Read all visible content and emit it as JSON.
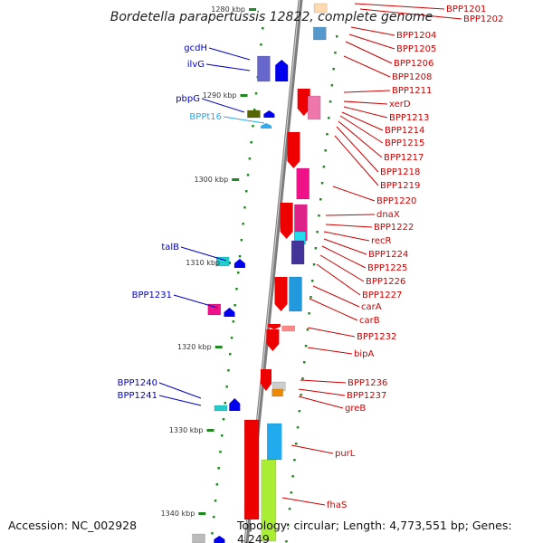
{
  "title": "Bordetella parapertussis 12822, complete genome",
  "accession": "Accession: NC_002928",
  "topology": "Topology: circular; Length: 4,773,551 bp; Genes: 4,249",
  "colors": {
    "left_label": "#0000cc",
    "left_label_light": "#22aaee",
    "right_label": "#cc0000",
    "axis": "#888888",
    "tick": "#228822"
  },
  "scale_labels": [
    "1280 kbp",
    "1290 kbp",
    "1300 kbp",
    "1310 kbp",
    "1320 kbp",
    "1330 kbp",
    "1340 kbp"
  ],
  "left_genes": [
    "gcdH",
    "ilvG",
    "pbpG",
    "BPPt16",
    "talB",
    "BPP1231",
    "BPP1240",
    "BPP1241"
  ],
  "right_genes": [
    "BPP1201",
    "BPP1202",
    "BPP1204",
    "BPP1205",
    "BPP1206",
    "BPP1208",
    "BPP1211",
    "xerD",
    "BPP1213",
    "BPP1214",
    "BPP1215",
    "BPP1217",
    "BPP1218",
    "BPP1219",
    "BPP1220",
    "dnaX",
    "BPP1222",
    "recR",
    "BPP1224",
    "BPP1225",
    "BPP1226",
    "BPP1227",
    "carA",
    "carB",
    "BPP1232",
    "bipA",
    "BPP1236",
    "BPP1237",
    "greB",
    "purL",
    "fhaS"
  ]
}
